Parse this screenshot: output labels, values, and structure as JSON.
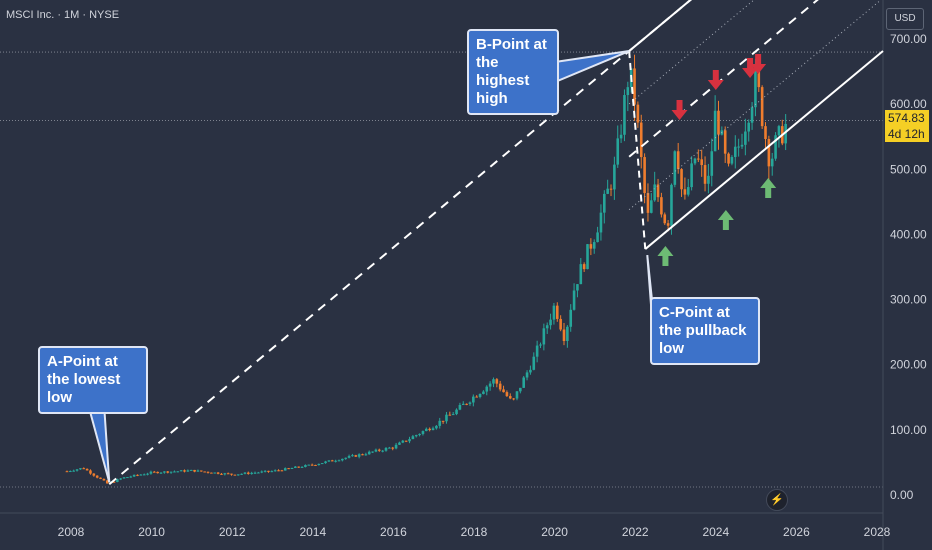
{
  "header": {
    "title": "MSCI Inc. · 1M · NYSE",
    "currency": "USD"
  },
  "price_axis": {
    "labels": [
      "700.00",
      "600.00",
      "500.00",
      "400.00",
      "300.00",
      "200.00",
      "100.00",
      "0.00"
    ],
    "current_price": "574.83",
    "countdown": "4d 12h"
  },
  "time_axis": {
    "labels": [
      "2008",
      "2010",
      "2012",
      "2014",
      "2016",
      "2018",
      "2020",
      "2022",
      "2024",
      "2026",
      "2028"
    ]
  },
  "annotations": {
    "a_point": "A-Point at the lowest low",
    "b_point": "B-Point at the highest high",
    "c_point": "C-Point at the pullback low"
  },
  "colors": {
    "background": "#2a3142",
    "up_candle": "#26a69a",
    "down_candle": "#ef7d2e",
    "channel_line": "#ffffff",
    "callout": "#3d72c9",
    "arrow_up": "#6dbb74",
    "arrow_down": "#d8313f"
  },
  "icons": {
    "replay": "lightning-icon"
  },
  "chart_data": {
    "type": "candlestick",
    "title": "MSCI Inc. · 1M · NYSE",
    "ylim": [
      0,
      740
    ],
    "xlim": [
      2007.0,
      2028.2
    ],
    "last_price": 574.83,
    "anchor_points": [
      {
        "x": 2008.95,
        "y": 15
      },
      {
        "x": 2021.85,
        "y": 680
      },
      {
        "x": 2022.25,
        "y": 376
      }
    ],
    "series": [
      {
        "name": "price",
        "x": [
          2007.9,
          2008.3,
          2008.9,
          2009.3,
          2010.0,
          2011.0,
          2012.0,
          2013.0,
          2014.0,
          2015.0,
          2016.0,
          2017.0,
          2017.5,
          2018.5,
          2018.95,
          2019.5,
          2020.0,
          2020.25,
          2020.5,
          2021.0,
          2021.5,
          2021.85,
          2022.0,
          2022.3,
          2022.5,
          2022.8,
          2023.0,
          2023.2,
          2023.5,
          2023.8,
          2024.0,
          2024.3,
          2024.6,
          2024.9,
          2025.0,
          2025.2,
          2025.35,
          2025.5,
          2025.7,
          2025.8
        ],
        "close": [
          35,
          40,
          16,
          25,
          33,
          36,
          30,
          35,
          45,
          58,
          72,
          105,
          125,
          175,
          140,
          210,
          290,
          240,
          320,
          400,
          500,
          650,
          600,
          420,
          470,
          410,
          550,
          440,
          520,
          470,
          590,
          490,
          540,
          610,
          640,
          560,
          510,
          540,
          560,
          574.83
        ]
      }
    ],
    "arrows": {
      "up": [
        2022.75,
        2024.25,
        2025.3
      ],
      "down": [
        2023.1,
        2024.0,
        2024.85,
        2025.05
      ]
    }
  }
}
